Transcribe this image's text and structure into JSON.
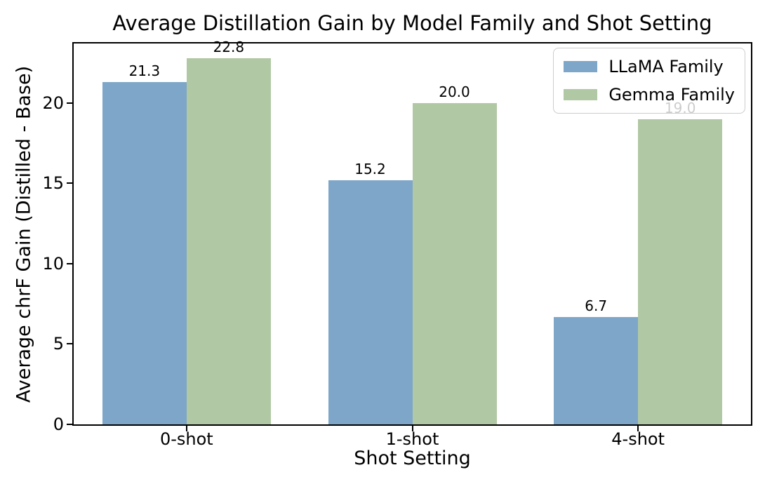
{
  "figure": {
    "background": "#ffffff",
    "text_color": "#000000",
    "spine_color": "#000000"
  },
  "chart_data": {
    "type": "bar",
    "title": "Average Distillation Gain by Model Family and Shot Setting",
    "xlabel": "Shot Setting",
    "ylabel": "Average chrF Gain (Distilled - Base)",
    "categories": [
      "0-shot",
      "1-shot",
      "4-shot"
    ],
    "series": [
      {
        "name": "LLaMA Family",
        "color": "#7ea6c8",
        "values": [
          21.3,
          15.2,
          6.7
        ]
      },
      {
        "name": "Gemma Family",
        "color": "#b1c8a4",
        "values": [
          22.8,
          20.0,
          19.0
        ]
      }
    ],
    "bar_value_labels": [
      [
        "21.3",
        "15.2",
        "6.7"
      ],
      [
        "22.8",
        "20.0",
        "19.0"
      ]
    ],
    "yticks": [
      0,
      5,
      10,
      15,
      20
    ],
    "ylim": [
      0,
      23.7
    ],
    "grid": false,
    "legend_position": "upper right",
    "legend_frame_color": "#cccccc"
  }
}
